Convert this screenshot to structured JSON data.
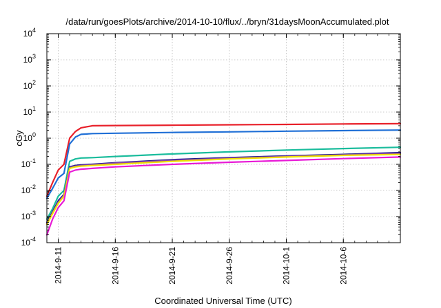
{
  "chart_data": {
    "type": "line",
    "title": "/data/run/goesPlots/archive/2014-10-10/flux/../bryn/31daysMoonAccumulated.plot",
    "xlabel": "Coordinated Universal Time (UTC)",
    "ylabel": "cGy",
    "y_scale": "log",
    "grid": true,
    "xlim": [
      "2014-09-10",
      "2014-10-11"
    ],
    "ylim": [
      0.0001,
      10000
    ],
    "x_ticks": [
      "2014-9-11",
      "2014-9-16",
      "2014-9-21",
      "2014-9-26",
      "2014-10-1",
      "2014-10-6"
    ],
    "y_ticks": [
      {
        "mantissa": "10",
        "exp": "-4",
        "value": 0.0001
      },
      {
        "mantissa": "10",
        "exp": "-3",
        "value": 0.001
      },
      {
        "mantissa": "10",
        "exp": "-2",
        "value": 0.01
      },
      {
        "mantissa": "10",
        "exp": "-1",
        "value": 0.1
      },
      {
        "mantissa": "10",
        "exp": "0",
        "value": 1
      },
      {
        "mantissa": "10",
        "exp": "1",
        "value": 10
      },
      {
        "mantissa": "10",
        "exp": "2",
        "value": 100
      },
      {
        "mantissa": "10",
        "exp": "3",
        "value": 1000
      },
      {
        "mantissa": "10",
        "exp": "4",
        "value": 10000
      }
    ],
    "series": [
      {
        "color": "#e8202a",
        "x": [
          "2014-09-10",
          "2014-09-10T12:00",
          "2014-09-11",
          "2014-09-11T12:00",
          "2014-09-12",
          "2014-09-12T12:00",
          "2014-09-13",
          "2014-09-14",
          "2014-09-16",
          "2014-09-21",
          "2014-09-26",
          "2014-10-01",
          "2014-10-06",
          "2014-10-11"
        ],
        "y": [
          0.006,
          0.02,
          0.06,
          0.1,
          1.0,
          1.8,
          2.5,
          3.0,
          3.05,
          3.15,
          3.25,
          3.35,
          3.5,
          3.6
        ]
      },
      {
        "color": "#1f6fd6",
        "x": [
          "2014-09-10",
          "2014-09-10T12:00",
          "2014-09-11",
          "2014-09-11T12:00",
          "2014-09-12",
          "2014-09-12T12:00",
          "2014-09-13",
          "2014-09-14",
          "2014-09-16",
          "2014-09-21",
          "2014-09-26",
          "2014-10-01",
          "2014-10-06",
          "2014-10-11"
        ],
        "y": [
          0.005,
          0.012,
          0.03,
          0.045,
          0.6,
          1.1,
          1.4,
          1.5,
          1.55,
          1.65,
          1.75,
          1.85,
          1.95,
          2.05
        ]
      },
      {
        "color": "#1abc9c",
        "x": [
          "2014-09-10",
          "2014-09-10T12:00",
          "2014-09-11",
          "2014-09-11T12:00",
          "2014-09-12",
          "2014-09-12T12:00",
          "2014-09-13",
          "2014-09-14",
          "2014-09-16",
          "2014-09-21",
          "2014-09-26",
          "2014-10-01",
          "2014-10-06",
          "2014-10-11"
        ],
        "y": [
          0.0008,
          0.002,
          0.006,
          0.01,
          0.13,
          0.16,
          0.175,
          0.18,
          0.2,
          0.25,
          0.3,
          0.35,
          0.4,
          0.45
        ]
      },
      {
        "color": "#1a1a8c",
        "x": [
          "2014-09-10",
          "2014-09-10T12:00",
          "2014-09-11",
          "2014-09-11T12:00",
          "2014-09-12",
          "2014-09-12T12:00",
          "2014-09-13",
          "2014-09-14",
          "2014-09-16",
          "2014-09-21",
          "2014-09-26",
          "2014-10-01",
          "2014-10-06",
          "2014-10-11"
        ],
        "y": [
          0.0006,
          0.0015,
          0.004,
          0.007,
          0.08,
          0.09,
          0.095,
          0.1,
          0.115,
          0.15,
          0.18,
          0.21,
          0.24,
          0.28
        ]
      },
      {
        "color": "#8e44ad",
        "x": [
          "2014-09-10",
          "2014-09-10T12:00",
          "2014-09-11",
          "2014-09-11T12:00",
          "2014-09-12",
          "2014-09-12T12:00",
          "2014-09-13",
          "2014-09-14",
          "2014-09-16",
          "2014-09-21",
          "2014-09-26",
          "2014-10-01",
          "2014-10-06",
          "2014-10-11"
        ],
        "y": [
          0.00055,
          0.0014,
          0.0035,
          0.0065,
          0.075,
          0.085,
          0.09,
          0.095,
          0.11,
          0.14,
          0.17,
          0.2,
          0.23,
          0.26
        ]
      },
      {
        "color": "#f0e000",
        "x": [
          "2014-09-10",
          "2014-09-10T12:00",
          "2014-09-11",
          "2014-09-11T12:00",
          "2014-09-12",
          "2014-09-12T12:00",
          "2014-09-13",
          "2014-09-14",
          "2014-09-16",
          "2014-09-21",
          "2014-09-26",
          "2014-10-01",
          "2014-10-06",
          "2014-10-11"
        ],
        "y": [
          0.0005,
          0.0013,
          0.0032,
          0.006,
          0.07,
          0.08,
          0.085,
          0.09,
          0.1,
          0.13,
          0.16,
          0.19,
          0.22,
          0.24
        ]
      },
      {
        "color": "#e81ad6",
        "x": [
          "2014-09-10",
          "2014-09-10T12:00",
          "2014-09-11",
          "2014-09-11T12:00",
          "2014-09-12",
          "2014-09-12T12:00",
          "2014-09-13",
          "2014-09-14",
          "2014-09-16",
          "2014-09-21",
          "2014-09-26",
          "2014-10-01",
          "2014-10-06",
          "2014-10-11"
        ],
        "y": [
          0.0002,
          0.0008,
          0.0022,
          0.004,
          0.05,
          0.06,
          0.065,
          0.07,
          0.08,
          0.1,
          0.12,
          0.14,
          0.165,
          0.19
        ]
      }
    ]
  }
}
